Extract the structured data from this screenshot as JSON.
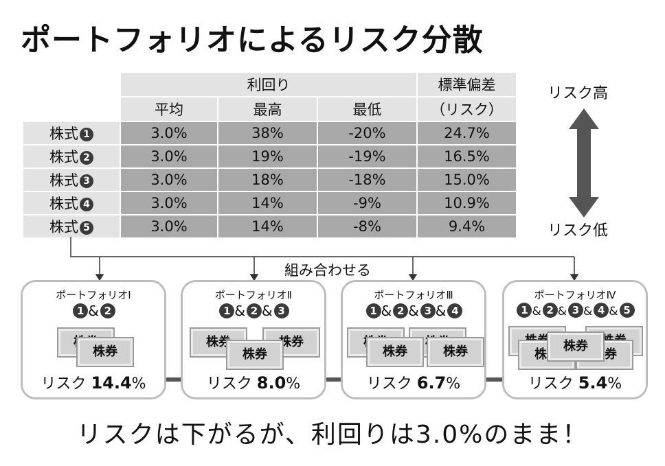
{
  "title": "ポートフォリオによるリスク分散",
  "table": {
    "group_return": "利回り",
    "col_avg": "平均",
    "col_max": "最高",
    "col_min": "最低",
    "col_sd_line1": "標準偏差",
    "col_sd_line2": "（リスク）",
    "rows": [
      {
        "name": "株式",
        "num": "1",
        "avg": "3.0%",
        "max": "38%",
        "min": "-20%",
        "sd": "24.7%"
      },
      {
        "name": "株式",
        "num": "2",
        "avg": "3.0%",
        "max": "19%",
        "min": "-19%",
        "sd": "16.5%"
      },
      {
        "name": "株式",
        "num": "3",
        "avg": "3.0%",
        "max": "18%",
        "min": "-18%",
        "sd": "15.0%"
      },
      {
        "name": "株式",
        "num": "4",
        "avg": "3.0%",
        "max": "14%",
        "min": "-9%",
        "sd": "10.9%"
      },
      {
        "name": "株式",
        "num": "5",
        "avg": "3.0%",
        "max": "14%",
        "min": "-8%",
        "sd": "9.4%"
      }
    ]
  },
  "risk_high": "リスク高",
  "risk_low": "リスク低",
  "combine_label": "組み合わせる",
  "portfolios": [
    {
      "title": "ポートフォリオⅠ",
      "combo": [
        "1",
        "2"
      ],
      "risk_prefix": "リスク ",
      "risk_value": "14.4",
      "risk_unit": "%"
    },
    {
      "title": "ポートフォリオⅡ",
      "combo": [
        "1",
        "2",
        "3"
      ],
      "risk_prefix": "リスク ",
      "risk_value": "8.0",
      "risk_unit": "%"
    },
    {
      "title": "ポートフォリオⅢ",
      "combo": [
        "1",
        "2",
        "3",
        "4"
      ],
      "risk_prefix": "リスク ",
      "risk_value": "6.7",
      "risk_unit": "%"
    },
    {
      "title": "ポートフォリオⅣ",
      "combo": [
        "1",
        "2",
        "3",
        "4",
        "5"
      ],
      "risk_prefix": "リスク ",
      "risk_value": "5.4",
      "risk_unit": "%"
    }
  ],
  "amp": "&",
  "certificate_label": "株券",
  "conclusion": "リスクは下がるが、利回りは3.0%のまま！",
  "colors": {
    "header_bg": "#e3e3e3",
    "value_bg": "#a9a9a9",
    "arrow": "#555555",
    "frame": "#bdbdbd"
  }
}
